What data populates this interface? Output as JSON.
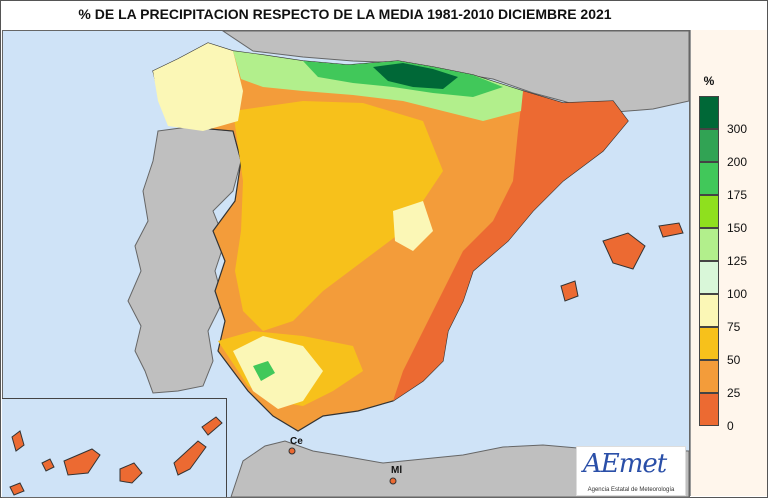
{
  "title": "% DE LA PRECIPITACION RESPECTO DE LA MEDIA 1981-2010 DICIEMBRE 2021",
  "legend": {
    "unit": "%",
    "classes": [
      {
        "label": "300",
        "color": "#006837"
      },
      {
        "label": "200",
        "color": "#31a354"
      },
      {
        "label": "175",
        "color": "#41c85a"
      },
      {
        "label": "150",
        "color": "#8fe01e"
      },
      {
        "label": "125",
        "color": "#b2ef8c"
      },
      {
        "label": "100",
        "color": "#d9f7d9"
      },
      {
        "label": "75",
        "color": "#fbf7b6"
      },
      {
        "label": "50",
        "color": "#f7c11b"
      },
      {
        "label": "25",
        "color": "#f39c3a"
      },
      {
        "label": "0",
        "color": "#ec6a32"
      }
    ]
  },
  "colors": {
    "sea": "#cfe3f7",
    "neighbor_land": "#bfbfbf",
    "border": "#333333"
  },
  "labels": {
    "ceuta": "Ce",
    "melilla": "Ml"
  },
  "logo": {
    "text": "AEmet",
    "subtitle": "Agencia Estatal de Meteorología"
  }
}
